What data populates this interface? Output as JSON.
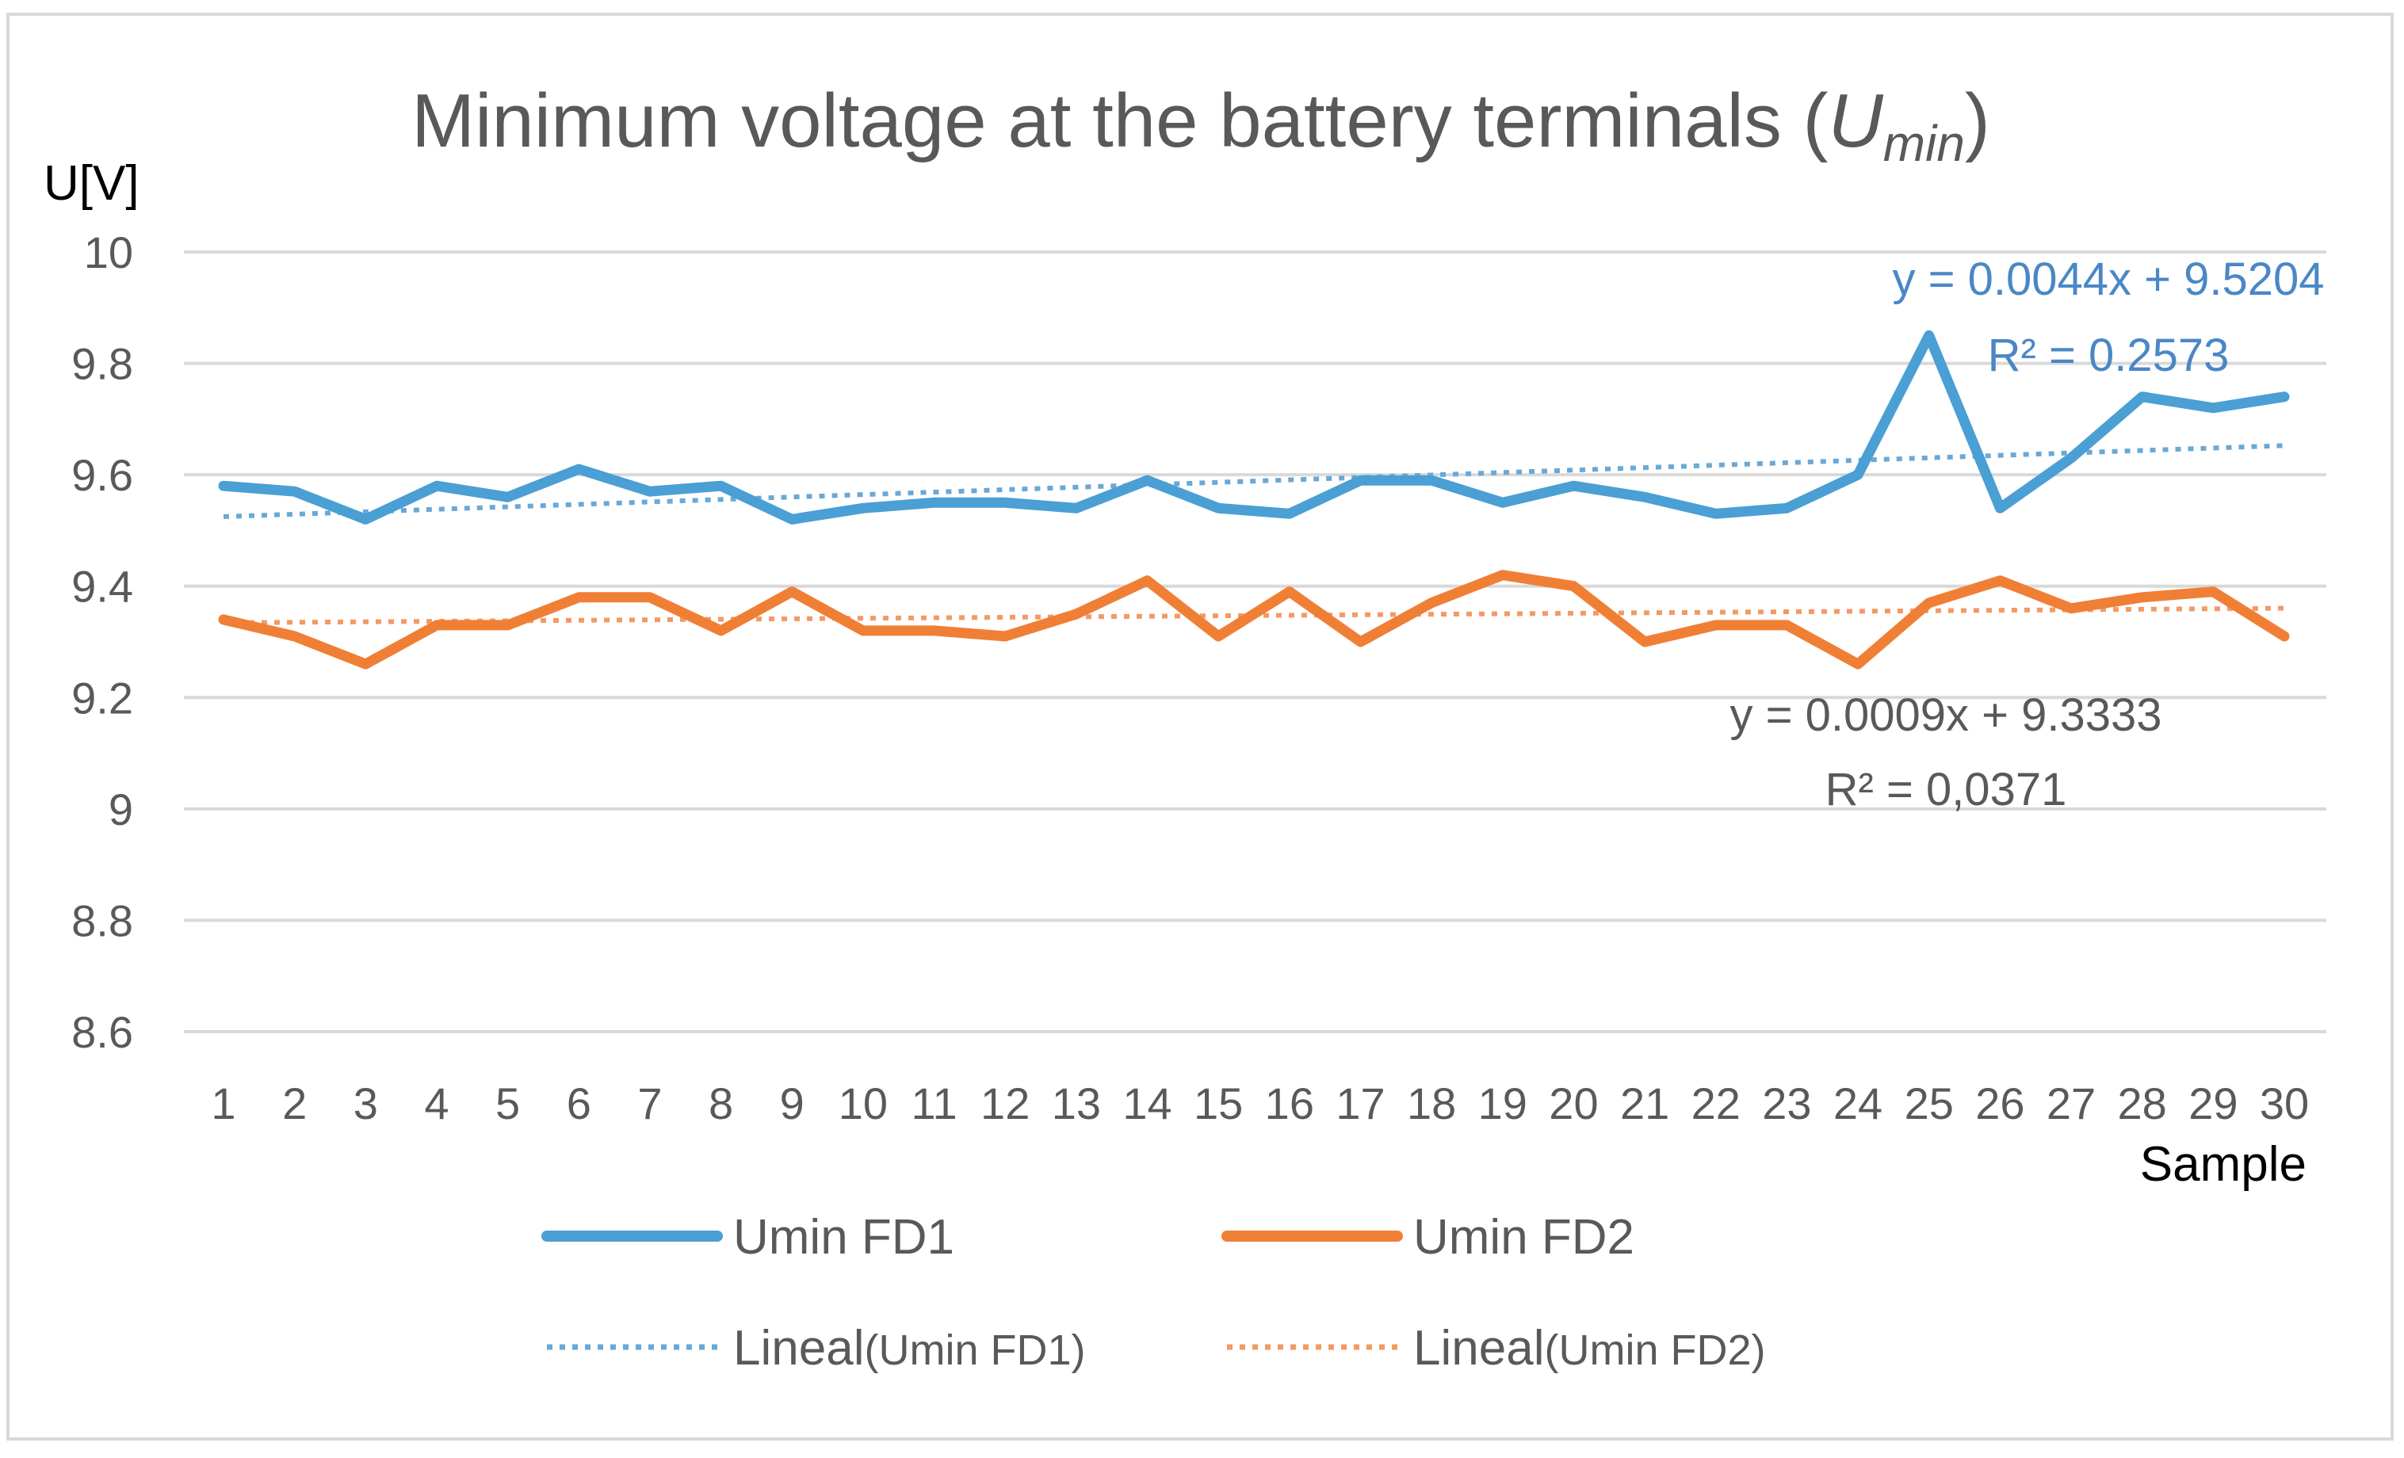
{
  "chart_data": {
    "type": "line",
    "title": "Minimum voltage at the battery terminals (",
    "title_var": "U",
    "title_sub": "min",
    "title_close": ")",
    "ylabel": "U[V]",
    "xlabel": "Sample",
    "ylim": [
      8.6,
      10
    ],
    "yticks": [
      10,
      9.8,
      9.6,
      9.4,
      9.2,
      9,
      8.8,
      8.6
    ],
    "ytick_labels": [
      "10",
      "9.8",
      "9.6",
      "9.4",
      "9.2",
      "9",
      "8.8",
      "8.6"
    ],
    "grid": true,
    "legend_position": "bottom",
    "x": [
      1,
      2,
      3,
      4,
      5,
      6,
      7,
      8,
      9,
      10,
      11,
      12,
      13,
      14,
      15,
      16,
      17,
      18,
      19,
      20,
      21,
      22,
      23,
      24,
      25,
      26,
      27,
      28,
      29,
      30
    ],
    "x_labels": [
      "1",
      "2",
      "3",
      "4",
      "5",
      "6",
      "7",
      "8",
      "9",
      "10",
      "11",
      "12",
      "13",
      "14",
      "15",
      "16",
      "17",
      "18",
      "19",
      "20",
      "21",
      "22",
      "23",
      "24",
      "25",
      "26",
      "27",
      "28",
      "29",
      "30"
    ],
    "series": [
      {
        "name": "Umin FD1",
        "color": "#4a9fd4",
        "values": [
          9.58,
          9.57,
          9.52,
          9.58,
          9.56,
          9.61,
          9.57,
          9.58,
          9.52,
          9.54,
          9.55,
          9.55,
          9.54,
          9.59,
          9.54,
          9.53,
          9.59,
          9.59,
          9.55,
          9.58,
          9.56,
          9.53,
          9.54,
          9.6,
          9.85,
          9.54,
          9.63,
          9.74,
          9.72,
          9.74
        ]
      },
      {
        "name": "Umin FD2",
        "color": "#f07f36",
        "values": [
          9.34,
          9.31,
          9.26,
          9.33,
          9.33,
          9.38,
          9.38,
          9.32,
          9.39,
          9.32,
          9.32,
          9.31,
          9.35,
          9.41,
          9.31,
          9.39,
          9.3,
          9.37,
          9.42,
          9.4,
          9.3,
          9.33,
          9.33,
          9.26,
          9.37,
          9.41,
          9.36,
          9.38,
          9.39,
          9.31
        ]
      }
    ],
    "trendlines": [
      {
        "name": "Lineal (Umin FD1)",
        "legend_prefix": "Lineal",
        "legend_suffix": "(Umin FD1)",
        "color": "#6aa8d6",
        "slope": 0.0044,
        "intercept": 9.5204,
        "equation": "y = 0.0044x + 9.5204",
        "r2": "R² = 0.2573"
      },
      {
        "name": "Lineal (Umin FD2)",
        "legend_prefix": "Lineal",
        "legend_suffix": "(Umin FD2)",
        "color": "#f29a66",
        "slope": 0.0009,
        "intercept": 9.3333,
        "equation": "y = 0.0009x + 9.3333",
        "r2": "R² = 0,0371"
      }
    ]
  }
}
